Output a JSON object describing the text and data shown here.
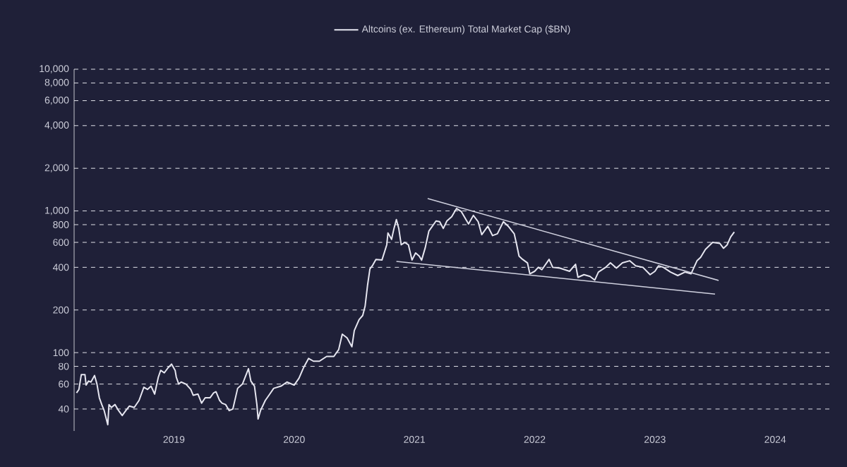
{
  "chart_data": {
    "type": "line",
    "log": "y",
    "grid": "y",
    "legend": "top",
    "xlim": [
      2018.17,
      2024.48
    ],
    "ylim": [
      28,
      10000
    ],
    "xticks": [
      2019,
      2020,
      2021,
      2022,
      2023,
      2024
    ],
    "yticks": [
      {
        "value": 40,
        "label": "40"
      },
      {
        "value": 60,
        "label": "60"
      },
      {
        "value": 80,
        "label": "80"
      },
      {
        "value": 100,
        "label": "100"
      },
      {
        "value": 200,
        "label": "200"
      },
      {
        "value": 400,
        "label": "400"
      },
      {
        "value": 600,
        "label": "600"
      },
      {
        "value": 800,
        "label": "800"
      },
      {
        "value": 1000,
        "label": "1,000"
      },
      {
        "value": 2000,
        "label": "2,000"
      },
      {
        "value": 4000,
        "label": "4,000"
      },
      {
        "value": 6000,
        "label": "6,000"
      },
      {
        "value": 8000,
        "label": "8,000"
      },
      {
        "value": 10000,
        "label": "10,000"
      }
    ],
    "series": [
      {
        "name": "Altcoins (ex. Ethereum) Total Market Cap ($BN)",
        "color": "#e6e6f0",
        "x": [
          2018.19,
          2018.21,
          2018.23,
          2018.24,
          2018.26,
          2018.27,
          2018.29,
          2018.31,
          2018.34,
          2018.36,
          2018.38,
          2018.4,
          2018.42,
          2018.45,
          2018.46,
          2018.48,
          2018.51,
          2018.54,
          2018.57,
          2018.6,
          2018.63,
          2018.67,
          2018.71,
          2018.75,
          2018.78,
          2018.81,
          2018.84,
          2018.87,
          2018.89,
          2018.92,
          2018.95,
          2018.98,
          2019.01,
          2019.02,
          2019.04,
          2019.06,
          2019.1,
          2019.14,
          2019.16,
          2019.2,
          2019.23,
          2019.26,
          2019.3,
          2019.33,
          2019.35,
          2019.38,
          2019.4,
          2019.43,
          2019.46,
          2019.49,
          2019.53,
          2019.57,
          2019.62,
          2019.64,
          2019.67,
          2019.69,
          2019.7,
          2019.72,
          2019.76,
          2019.79,
          2019.83,
          2019.89,
          2019.94,
          2020.0,
          2020.04,
          2020.08,
          2020.12,
          2020.16,
          2020.21,
          2020.27,
          2020.33,
          2020.37,
          2020.4,
          2020.44,
          2020.48,
          2020.5,
          2020.54,
          2020.57,
          2020.59,
          2020.61,
          2020.63,
          2020.65,
          2020.68,
          2020.73,
          2020.77,
          2020.78,
          2020.81,
          2020.83,
          2020.85,
          2020.87,
          2020.89,
          2020.92,
          2020.95,
          2020.98,
          2021.01,
          2021.04,
          2021.06,
          2021.09,
          2021.12,
          2021.18,
          2021.21,
          2021.24,
          2021.27,
          2021.31,
          2021.35,
          2021.39,
          2021.45,
          2021.49,
          2021.53,
          2021.56,
          2021.61,
          2021.65,
          2021.69,
          2021.74,
          2021.78,
          2021.83,
          2021.85,
          2021.87,
          2021.9,
          2021.94,
          2021.96,
          2022.0,
          2022.03,
          2022.06,
          2022.12,
          2022.15,
          2022.21,
          2022.29,
          2022.34,
          2022.36,
          2022.41,
          2022.46,
          2022.5,
          2022.53,
          2022.59,
          2022.63,
          2022.68,
          2022.73,
          2022.79,
          2022.84,
          2022.9,
          2022.96,
          2023.0,
          2023.03,
          2023.07,
          2023.13,
          2023.19,
          2023.25,
          2023.3,
          2023.35,
          2023.38,
          2023.42,
          2023.48,
          2023.54,
          2023.57,
          2023.6,
          2023.63,
          2023.66
        ],
        "values": [
          52,
          55,
          70,
          70,
          70,
          59,
          63,
          62,
          69,
          60,
          48,
          43,
          39,
          31,
          43,
          41,
          43,
          39,
          36,
          39,
          42,
          41,
          46,
          57,
          55,
          58,
          51,
          67,
          75,
          72,
          78,
          83,
          75,
          67,
          60,
          62,
          60,
          55,
          50,
          51,
          44,
          48,
          48,
          52,
          53,
          46,
          44,
          43,
          39,
          40,
          56,
          60,
          77,
          63,
          58,
          43,
          34,
          39,
          46,
          50,
          56,
          58,
          62,
          59,
          66,
          79,
          91,
          87,
          87,
          94,
          94,
          105,
          135,
          127,
          110,
          143,
          171,
          183,
          213,
          298,
          390,
          410,
          455,
          450,
          577,
          700,
          630,
          752,
          870,
          752,
          577,
          600,
          577,
          450,
          505,
          480,
          450,
          550,
          720,
          850,
          840,
          752,
          850,
          910,
          1040,
          990,
          810,
          930,
          840,
          680,
          780,
          670,
          690,
          840,
          780,
          690,
          580,
          480,
          455,
          430,
          360,
          375,
          400,
          385,
          455,
          400,
          395,
          375,
          420,
          340,
          355,
          345,
          325,
          370,
          400,
          430,
          395,
          430,
          445,
          410,
          400,
          355,
          375,
          410,
          400,
          370,
          350,
          370,
          360,
          445,
          470,
          535,
          600,
          590,
          545,
          575,
          655,
          710
        ]
      },
      {
        "type": "line",
        "color": "#cfd0de",
        "x": [
          2021.11,
          2023.53
        ],
        "values": [
          1222,
          323
        ]
      },
      {
        "type": "line",
        "color": "#cfd0de",
        "x": [
          2020.85,
          2023.5
        ],
        "values": [
          440,
          259
        ]
      }
    ]
  }
}
